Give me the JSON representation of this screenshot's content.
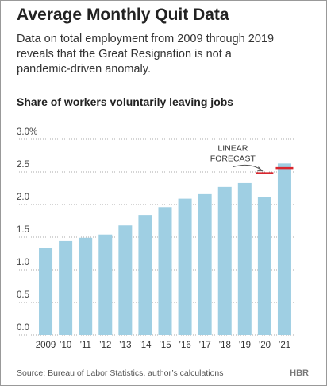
{
  "title": "Average Monthly Quit Data",
  "subtitle": "Data on total employment from 2009 through 2019 reveals that the Great Resignation is not a pandemic-driven anomaly.",
  "source": "Source: Bureau of Labor Statistics, author’s calculations",
  "logo": "HBR",
  "chart_data": {
    "type": "bar",
    "title": "Share of workers voluntarily leaving jobs",
    "categories": [
      "2009",
      "’10",
      "’11",
      "’12",
      "’13",
      "’14",
      "’15",
      "’16",
      "’17",
      "’18",
      "’19",
      "’20",
      "’21"
    ],
    "values": [
      1.34,
      1.44,
      1.49,
      1.54,
      1.68,
      1.84,
      1.96,
      2.09,
      2.16,
      2.27,
      2.33,
      2.12,
      2.63
    ],
    "color": "#9fcfe3",
    "forecast": {
      "values": [
        null,
        null,
        null,
        null,
        null,
        null,
        null,
        null,
        null,
        null,
        null,
        2.48,
        2.56
      ],
      "color": "#d9262e"
    },
    "annotation": [
      "LINEAR",
      "FORECAST"
    ],
    "ylim": [
      0,
      3
    ],
    "yticks": [
      {
        "value": 0,
        "label": "0.0"
      },
      0.5,
      {
        "value": 1,
        "label": "1.0"
      },
      1.5,
      {
        "value": 2,
        "label": "2.0"
      },
      2.5,
      {
        "value": 3,
        "label": "3.0%"
      }
    ],
    "grid": true
  }
}
